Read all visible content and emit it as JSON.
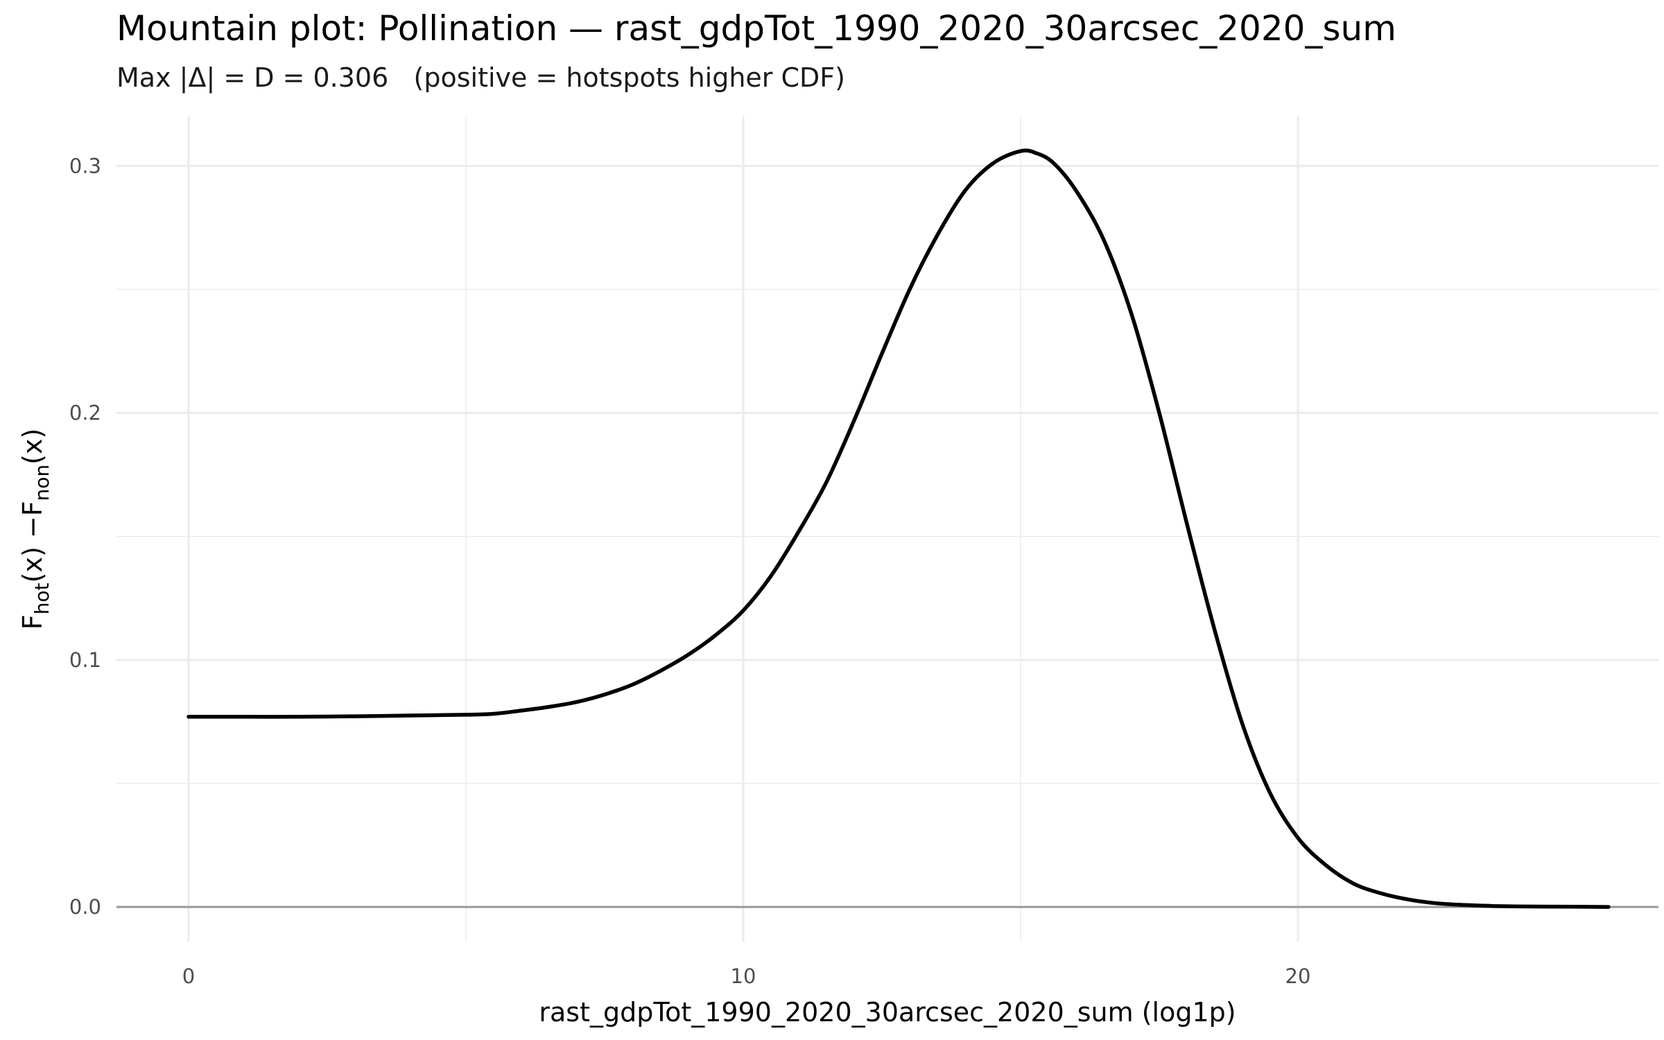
{
  "chart_data": {
    "type": "line",
    "title": "Mountain plot: Pollination — rast_gdpTot_1990_2020_30arcsec_2020_sum",
    "subtitle": "Max |Δ| = D = 0.306   (positive = hotspots higher CDF)",
    "xlabel": "rast_gdpTot_1990_2020_30arcsec_2020_sum (log1p)",
    "ylabel": {
      "main": "F",
      "sub1": "hot",
      "mid": "(x) −F",
      "sub2": "non",
      "end": "(x)"
    },
    "xlim": [
      -1.3,
      26.5
    ],
    "ylim": [
      -0.014,
      0.32
    ],
    "x_ticks": [
      0,
      10,
      20
    ],
    "y_ticks": [
      0.0,
      0.1,
      0.2,
      0.3
    ],
    "x_tick_labels": [
      "0",
      "10",
      "20"
    ],
    "y_tick_labels": [
      "0.0",
      "0.1",
      "0.2",
      "0.3"
    ],
    "grid": true,
    "reference_line_y": 0,
    "series": [
      {
        "x": [
          0,
          1,
          2,
          3,
          4,
          5,
          5.5,
          6,
          6.5,
          7,
          7.5,
          8,
          8.5,
          9,
          9.5,
          10,
          10.5,
          11,
          11.5,
          12,
          12.5,
          13,
          13.5,
          14,
          14.5,
          15,
          15.3,
          15.6,
          16,
          16.5,
          17,
          17.5,
          18,
          18.5,
          19,
          19.5,
          20,
          20.5,
          21,
          21.5,
          22,
          22.5,
          23,
          23.5,
          24,
          25,
          25.6
        ],
        "y": [
          0.077,
          0.077,
          0.077,
          0.0772,
          0.0775,
          0.0778,
          0.0782,
          0.0795,
          0.081,
          0.083,
          0.086,
          0.09,
          0.0955,
          0.102,
          0.11,
          0.12,
          0.134,
          0.152,
          0.172,
          0.197,
          0.224,
          0.25,
          0.272,
          0.29,
          0.301,
          0.306,
          0.305,
          0.301,
          0.29,
          0.27,
          0.24,
          0.2,
          0.155,
          0.112,
          0.074,
          0.046,
          0.028,
          0.017,
          0.0095,
          0.0055,
          0.003,
          0.0015,
          0.0008,
          0.0004,
          0.0002,
          0.0001,
          0.0
        ]
      }
    ],
    "colors": {
      "line": "#000000",
      "zero_line": "#999999",
      "grid": "#ebebeb"
    }
  }
}
